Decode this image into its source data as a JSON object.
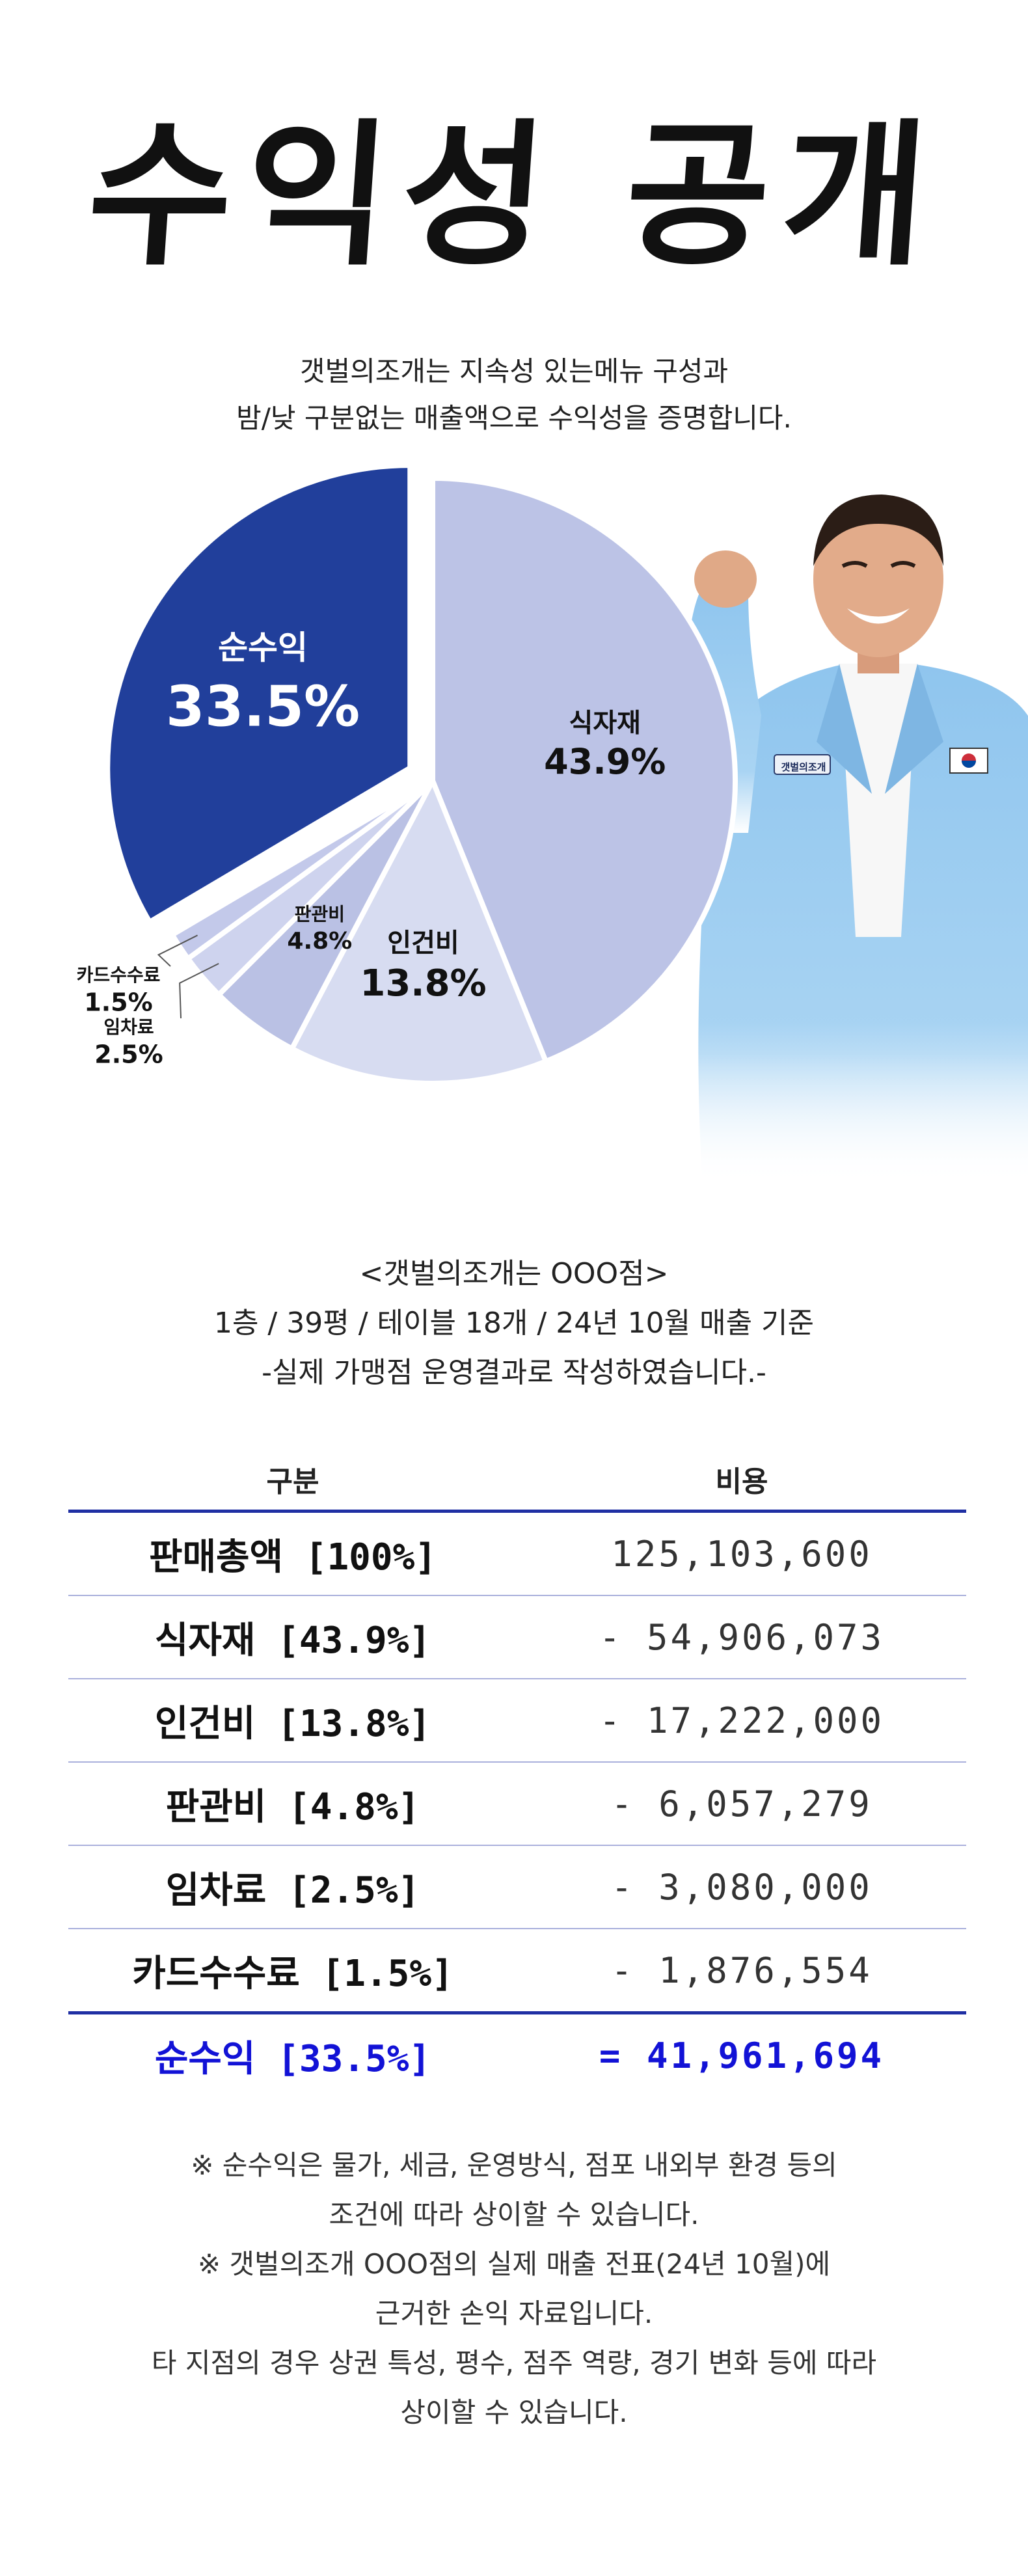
{
  "header": {
    "title": "수익성 공개",
    "subtitle_lines": [
      "갯벌의조개는 지속성 있는메뉴 구성과",
      "밤/낮 구분없는 매출액으로 수익성을 증명합니다."
    ]
  },
  "person": {
    "badge": "갯벌의조개"
  },
  "chart_data": {
    "type": "pie",
    "title": "",
    "legend": "none",
    "slices": [
      {
        "label": "식자재",
        "value_label": "43.9%",
        "value": 43.9,
        "color": "#bcc3e6"
      },
      {
        "label": "인건비",
        "value_label": "13.8%",
        "value": 13.8,
        "color": "#d7dcf1"
      },
      {
        "label": "판관비",
        "value_label": "4.8%",
        "value": 4.8,
        "color": "#bac1e4"
      },
      {
        "label": "임차료",
        "value_label": "2.5%",
        "value": 2.5,
        "color": "#ced3ee"
      },
      {
        "label": "카드수수료",
        "value_label": "1.5%",
        "value": 1.5,
        "color": "#c3c9ea"
      },
      {
        "label": "순수익",
        "value_label": "33.5%",
        "value": 33.5,
        "color": "#213f9b",
        "exploded": true
      }
    ]
  },
  "basis": {
    "lines": [
      "<갯벌의조개는 OOO점>",
      "1층 / 39평 / 테이블 18개 / 24년 10월 매출 기준",
      "-실제 가맹점 운영결과로 작성하였습니다.-"
    ]
  },
  "table": {
    "headers": [
      "구분",
      "비용"
    ],
    "rows": [
      {
        "label": "판매총액 [100%]",
        "value": "125,103,600"
      },
      {
        "label": "식자재 [43.9%]",
        "value": "- 54,906,073"
      },
      {
        "label": "인건비 [13.8%]",
        "value": "- 17,222,000"
      },
      {
        "label": "판관비 [4.8%]",
        "value": "- 6,057,279"
      },
      {
        "label": "임차료 [2.5%]",
        "value": "- 3,080,000"
      },
      {
        "label": "카드수수료 [1.5%]",
        "value": "- 1,876,554"
      }
    ],
    "total": {
      "label": "순수익 [33.5%]",
      "value": "= 41,961,694"
    }
  },
  "notes": {
    "lines": [
      "※ 순수익은 물가, 세금, 운영방식, 점포 내외부 환경 등의",
      "조건에 따라 상이할 수 있습니다.",
      "※ 갯벌의조개 OOO점의 실제 매출 전표(24년 10월)에",
      "근거한 손익 자료입니다.",
      "타 지점의 경우 상권 특성, 평수, 점주 역량, 경기 변화 등에 따라",
      "상이할 수 있습니다."
    ]
  },
  "colors": {
    "accent_blue": "#1f2fa3",
    "total_text": "#1212d6",
    "net_profit_slice": "#213f9b"
  }
}
